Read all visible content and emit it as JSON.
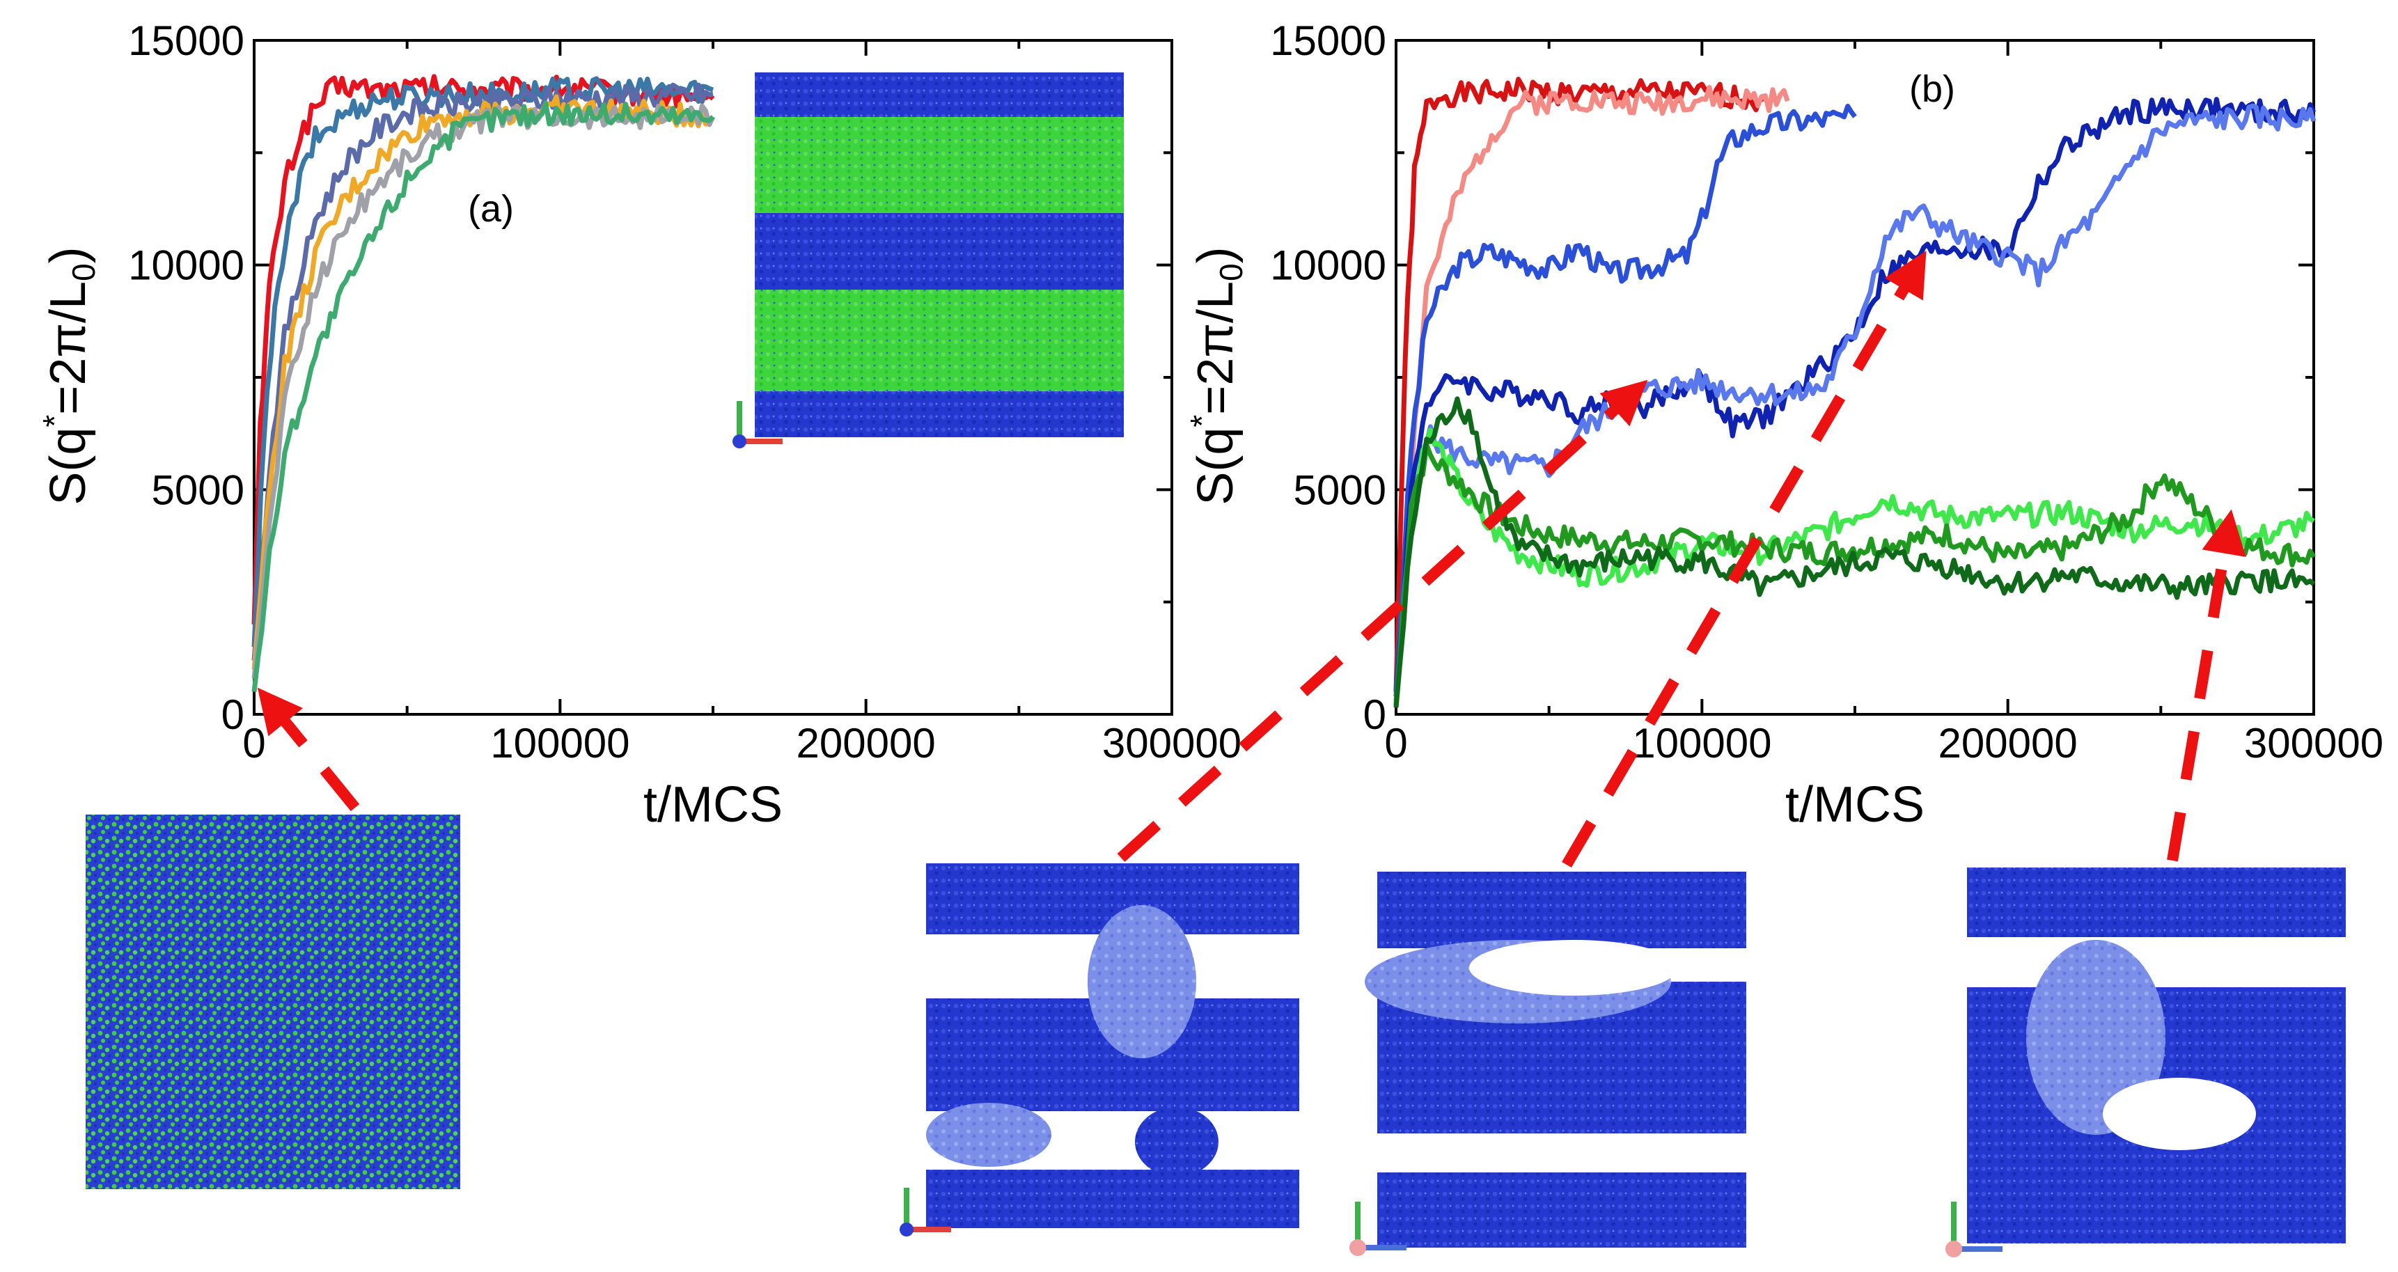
{
  "chart_data": [
    {
      "panel": "a",
      "type": "line",
      "panel_label": "(a)",
      "xlabel": "t/MCS",
      "ylabel_parts": {
        "s": "S(q",
        "sup": "*",
        "mid": "=2π/L",
        "sub": "0",
        "end": ")"
      },
      "xlim": [
        0,
        300000
      ],
      "ylim": [
        0,
        15000
      ],
      "x_ticks": [
        0,
        100000,
        200000,
        300000
      ],
      "y_ticks": [
        0,
        5000,
        10000,
        15000
      ],
      "x_tick_labels": [
        "0",
        "100000",
        "200000",
        "300000"
      ],
      "y_tick_labels": [
        "0",
        "5000",
        "10000",
        "15000"
      ],
      "x_end": 150000,
      "series": [
        {
          "name": "red",
          "color": "#e8121e",
          "x": [
            0,
            2000,
            5000,
            10000,
            15000,
            20000,
            25000,
            30000,
            40000,
            60000,
            80000,
            100000,
            150000
          ],
          "values": [
            2000,
            6500,
            9500,
            11800,
            12900,
            13500,
            13900,
            14000,
            13900,
            13950,
            13900,
            13950,
            13700
          ]
        },
        {
          "name": "steel-blue",
          "color": "#3a78a8",
          "x": [
            0,
            3000,
            8000,
            15000,
            20000,
            30000,
            40000,
            60000,
            80000,
            100000,
            150000
          ],
          "values": [
            1500,
            6000,
            9800,
            11900,
            12800,
            13400,
            13700,
            13800,
            13800,
            13900,
            13900
          ]
        },
        {
          "name": "slate",
          "color": "#5b6aa8",
          "x": [
            0,
            5000,
            10000,
            20000,
            30000,
            40000,
            50000,
            70000,
            100000,
            150000
          ],
          "values": [
            1200,
            5500,
            8400,
            11000,
            12300,
            13000,
            13400,
            13600,
            13700,
            13800
          ]
        },
        {
          "name": "orange",
          "color": "#f0a825",
          "x": [
            0,
            5000,
            10000,
            20000,
            30000,
            40000,
            50000,
            60000,
            80000,
            100000,
            150000
          ],
          "values": [
            1000,
            5000,
            7800,
            10200,
            11500,
            12300,
            12900,
            13300,
            13400,
            13500,
            13300
          ]
        },
        {
          "name": "gray",
          "color": "#a0a0a8",
          "x": [
            0,
            5000,
            10000,
            20000,
            30000,
            40000,
            50000,
            60000,
            80000,
            100000,
            150000
          ],
          "values": [
            800,
            4200,
            7000,
            9500,
            10900,
            11800,
            12400,
            12900,
            13300,
            13300,
            13300
          ]
        },
        {
          "name": "green",
          "color": "#3dab70",
          "x": [
            0,
            5000,
            10000,
            20000,
            30000,
            40000,
            50000,
            60000,
            70000,
            80000,
            100000,
            150000
          ],
          "values": [
            500,
            3500,
            5800,
            8000,
            9500,
            10800,
            11900,
            12700,
            13100,
            13300,
            13400,
            13300
          ]
        }
      ]
    },
    {
      "panel": "b",
      "type": "line",
      "panel_label": "(b)",
      "xlabel": "t/MCS",
      "ylabel_parts": {
        "s": "S(q",
        "sup": "*",
        "mid": "=2π/L",
        "sub": "0",
        "end": ")"
      },
      "xlim": [
        0,
        300000
      ],
      "ylim": [
        0,
        15000
      ],
      "x_ticks": [
        0,
        100000,
        200000,
        300000
      ],
      "y_ticks": [
        0,
        5000,
        10000,
        15000
      ],
      "x_tick_labels": [
        "0",
        "100000",
        "200000",
        "300000"
      ],
      "y_tick_labels": [
        "0",
        "5000",
        "10000",
        "15000"
      ],
      "series": [
        {
          "name": "dark-red",
          "color": "#d81212",
          "x": [
            0,
            3000,
            6000,
            10000,
            15000,
            25000,
            40000,
            60000,
            80000,
            100000,
            120000
          ],
          "values": [
            500,
            8000,
            12000,
            13500,
            13800,
            13800,
            13900,
            13800,
            13850,
            13800,
            13700
          ]
        },
        {
          "name": "salmon",
          "color": "#f58a85",
          "x": [
            0,
            5000,
            10000,
            20000,
            30000,
            40000,
            60000,
            80000,
            100000,
            128000
          ],
          "values": [
            400,
            5500,
            9500,
            11500,
            12800,
            13600,
            13700,
            13600,
            13700,
            13650
          ]
        },
        {
          "name": "royal-blue",
          "color": "#2a4fd9",
          "x": [
            0,
            5000,
            10000,
            20000,
            30000,
            50000,
            60000,
            70000,
            80000,
            95000,
            100000,
            105000,
            110000,
            120000,
            130000,
            150000
          ],
          "values": [
            500,
            6000,
            8800,
            10000,
            10300,
            9900,
            10400,
            9800,
            9900,
            10200,
            11000,
            12200,
            12800,
            13100,
            13200,
            13300
          ]
        },
        {
          "name": "navy",
          "color": "#1023b0",
          "x": [
            0,
            5000,
            10000,
            20000,
            30000,
            50000,
            60000,
            70000,
            80000,
            100000,
            110000,
            120000,
            130000,
            140000,
            150000,
            160000,
            170000,
            180000,
            200000,
            210000,
            220000,
            240000,
            260000,
            280000,
            300000
          ],
          "values": [
            400,
            5000,
            7000,
            7500,
            7200,
            7100,
            6700,
            7000,
            6800,
            7500,
            6400,
            6600,
            7200,
            7800,
            8500,
            9800,
            10200,
            10400,
            10300,
            11800,
            12700,
            13400,
            13500,
            13400,
            13400
          ]
        },
        {
          "name": "cornflower",
          "color": "#5a78ee",
          "x": [
            0,
            5000,
            10000,
            20000,
            30000,
            50000,
            60000,
            80000,
            100000,
            110000,
            130000,
            140000,
            150000,
            160000,
            170000,
            180000,
            190000,
            200000,
            210000,
            220000,
            230000,
            240000,
            250000,
            260000,
            280000,
            300000
          ],
          "values": [
            300,
            4500,
            6200,
            5800,
            5600,
            5500,
            6300,
            7200,
            7400,
            7200,
            7100,
            7300,
            8500,
            10600,
            11200,
            10800,
            10400,
            10200,
            9800,
            10600,
            11200,
            12300,
            13000,
            13200,
            13300,
            13200
          ]
        },
        {
          "name": "bright-green",
          "color": "#3ee84a",
          "x": [
            0,
            5000,
            10000,
            15000,
            20000,
            25000,
            30000,
            40000,
            60000,
            80000,
            100000,
            120000,
            140000,
            160000,
            180000,
            200000,
            220000,
            240000,
            260000,
            280000,
            300000
          ],
          "values": [
            200,
            4500,
            6300,
            5800,
            5200,
            4600,
            4200,
            3600,
            3100,
            3300,
            3800,
            3600,
            4100,
            4800,
            4400,
            4400,
            4500,
            4100,
            4300,
            3900,
            4300
          ]
        },
        {
          "name": "medium-green",
          "color": "#1f9a1f",
          "x": [
            0,
            5000,
            10000,
            20000,
            30000,
            40000,
            50000,
            60000,
            80000,
            100000,
            120000,
            140000,
            160000,
            180000,
            200000,
            220000,
            240000,
            250000,
            260000,
            270000,
            280000,
            300000
          ],
          "values": [
            200,
            4800,
            5800,
            5200,
            4600,
            4200,
            4000,
            3900,
            3800,
            3900,
            3700,
            3600,
            3800,
            4000,
            3500,
            3700,
            4400,
            5300,
            4700,
            4100,
            3700,
            3500
          ]
        },
        {
          "name": "dark-green",
          "color": "#0e6a18",
          "x": [
            0,
            5000,
            10000,
            20000,
            25000,
            30000,
            40000,
            60000,
            80000,
            100000,
            120000,
            140000,
            160000,
            180000,
            200000,
            220000,
            240000,
            260000,
            280000,
            300000
          ],
          "values": [
            150,
            4000,
            6000,
            7000,
            6500,
            5200,
            3700,
            3300,
            3500,
            3400,
            2800,
            3200,
            3500,
            3300,
            2900,
            3100,
            2900,
            2800,
            3000,
            2900
          ]
        }
      ]
    }
  ]
}
